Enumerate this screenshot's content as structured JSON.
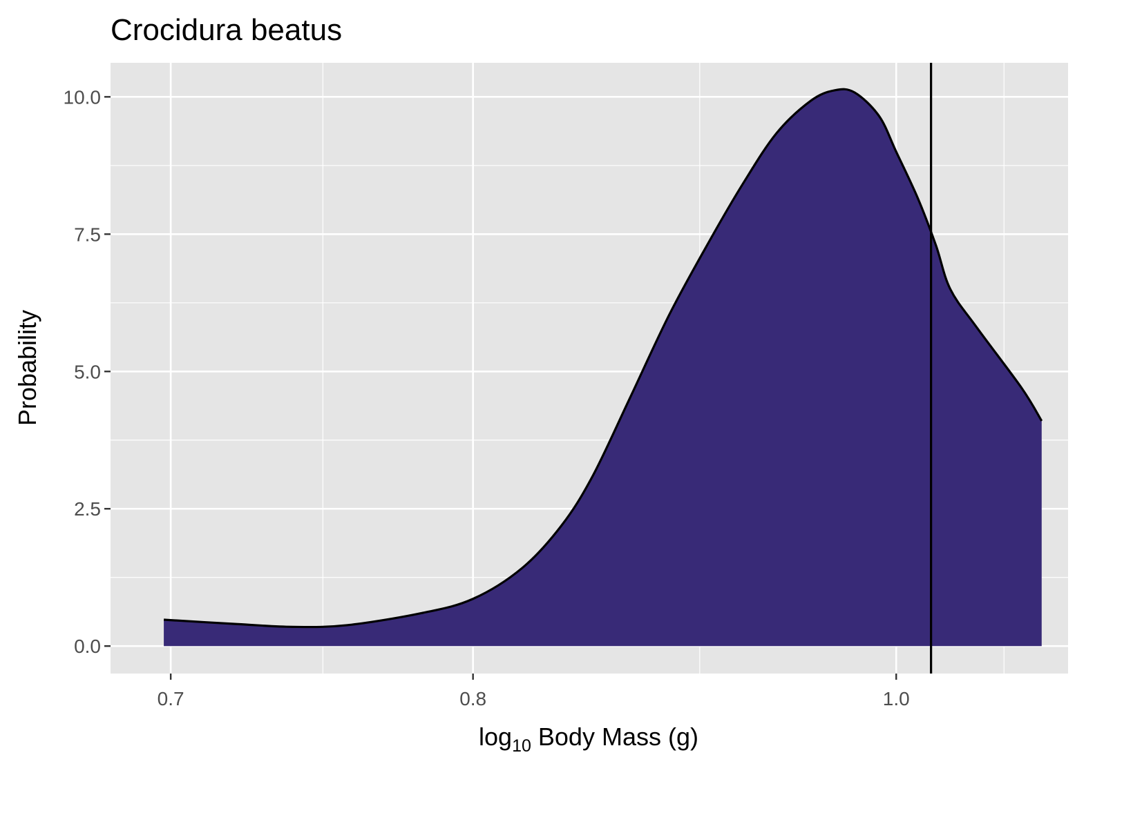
{
  "chart_data": {
    "type": "area",
    "title": "Crocidura beatus",
    "xlabel": {
      "base": "log",
      "subscript": "10",
      "rest": " Body Mass (g)"
    },
    "ylabel": "Probability",
    "x_scale": "reciprocal",
    "xlim": [
      0.683,
      1.113
    ],
    "ylim": [
      -0.5,
      10.62
    ],
    "x_ticks": [
      {
        "value": 0.7,
        "label": "0.7"
      },
      {
        "value": 0.8,
        "label": "0.8"
      },
      {
        "value": 1.0,
        "label": "1.0"
      }
    ],
    "x_minor_ticks": [
      0.747,
      0.896,
      1.068
    ],
    "y_ticks": [
      {
        "value": 0.0,
        "label": "0.0"
      },
      {
        "value": 2.5,
        "label": "2.5"
      },
      {
        "value": 5.0,
        "label": "5.0"
      },
      {
        "value": 7.5,
        "label": "7.5"
      },
      {
        "value": 10.0,
        "label": "10.0"
      }
    ],
    "y_minor_ticks": [
      1.25,
      3.75,
      6.25,
      8.75
    ],
    "grid": true,
    "legend": "none",
    "series": [
      {
        "x": [
          0.698,
          0.72,
          0.737,
          0.755,
          0.781,
          0.8,
          0.819,
          0.835,
          0.848,
          0.864,
          0.882,
          0.901,
          0.917,
          0.934,
          0.952,
          0.965,
          0.976,
          0.99,
          1.0,
          1.013,
          1.024,
          1.033,
          1.05,
          1.08,
          1.094
        ],
        "y": [
          0.48,
          0.4,
          0.35,
          0.38,
          0.6,
          0.86,
          1.42,
          2.2,
          3.1,
          4.51,
          6.05,
          7.4,
          8.42,
          9.34,
          9.93,
          10.12,
          10.08,
          9.65,
          9.0,
          8.15,
          7.3,
          6.5,
          5.8,
          4.7,
          4.1
        ],
        "fill": "#382a77",
        "stroke": "#000000"
      }
    ],
    "vline": {
      "x": 1.021,
      "color": "#000000"
    },
    "panel_color": "#e5e5e5",
    "grid_color": "#ffffff"
  }
}
